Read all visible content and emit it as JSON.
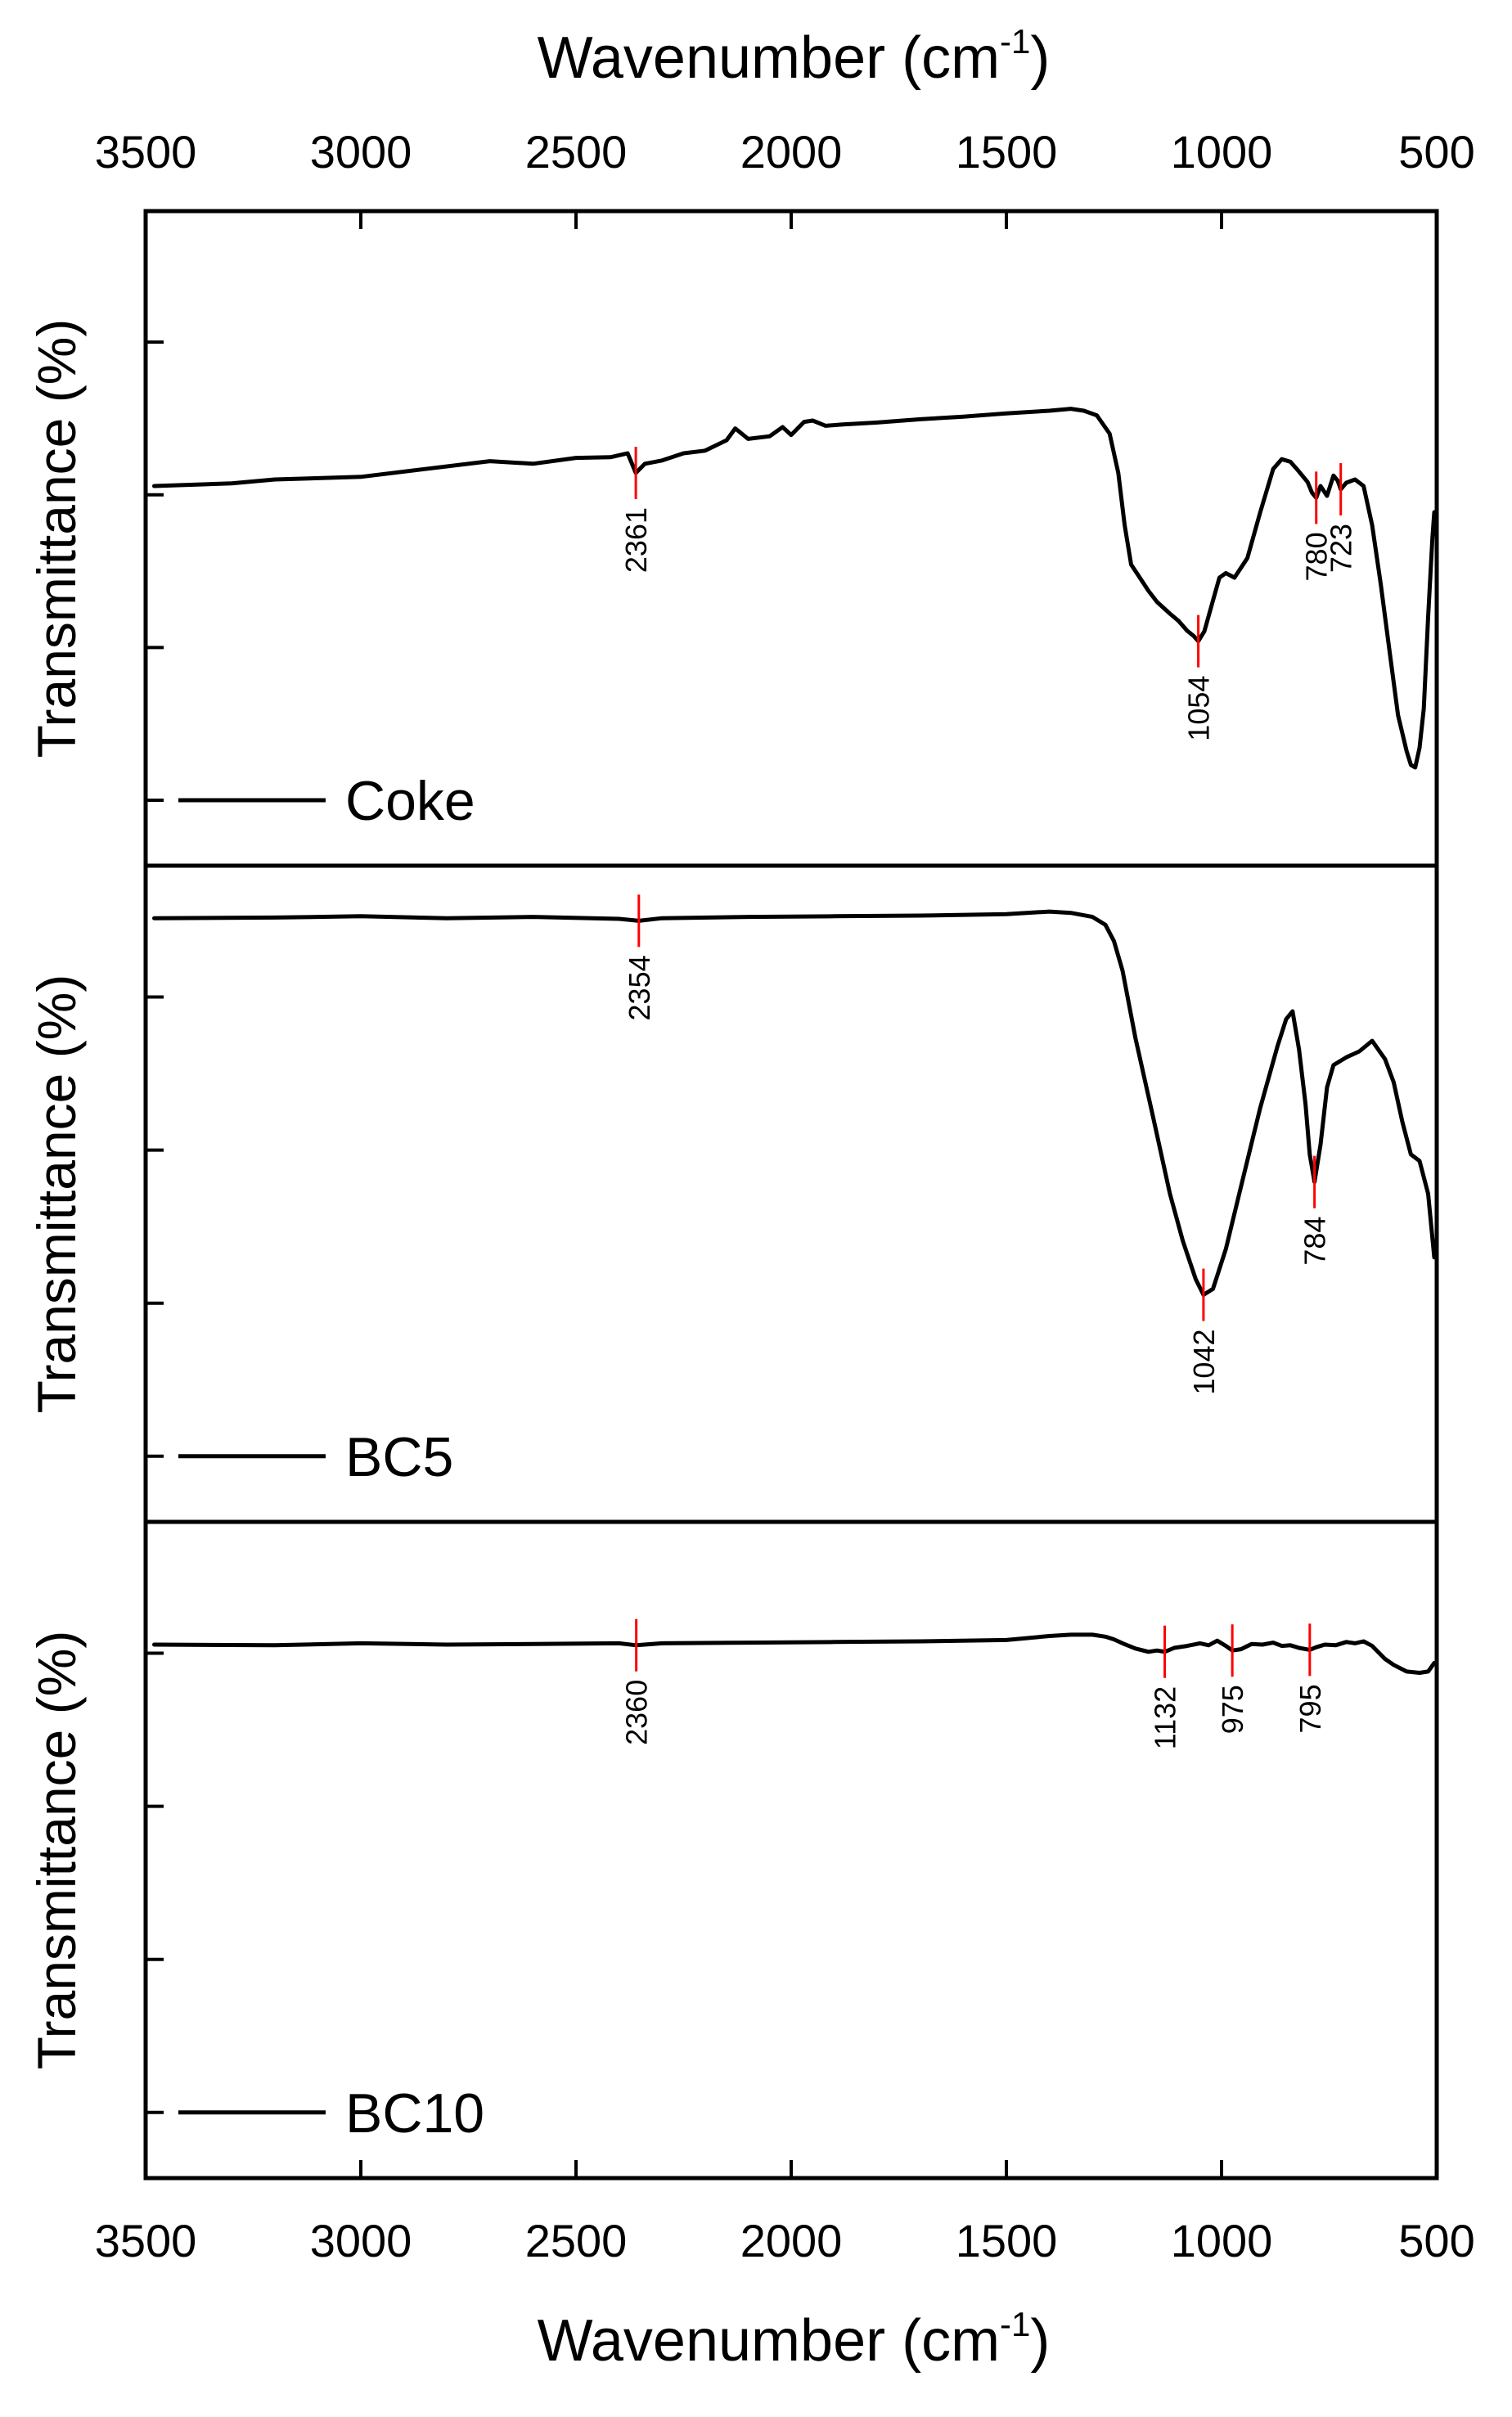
{
  "chart_data": [
    {
      "type": "line",
      "panel": "top",
      "title": "",
      "xlabel_top": "Wavenumber (cm",
      "xlabel_sup": "-1",
      "xlabel_close": ")",
      "ylabel": "Transmittance (%)",
      "xlim": [
        3500,
        500
      ],
      "ylim": [
        0,
        100
      ],
      "xticks": [
        3500,
        3000,
        2500,
        2000,
        1500,
        1000,
        500
      ],
      "ytick_count": 4,
      "legend_position": "bottom-left",
      "series": [
        {
          "name": "Coke",
          "x": [
            3480,
            3300,
            3200,
            3000,
            2850,
            2700,
            2600,
            2500,
            2420,
            2380,
            2361,
            2340,
            2300,
            2250,
            2200,
            2150,
            2130,
            2100,
            2050,
            2020,
            2000,
            1970,
            1950,
            1920,
            1880,
            1800,
            1700,
            1600,
            1500,
            1450,
            1400,
            1350,
            1320,
            1290,
            1260,
            1240,
            1225,
            1210,
            1190,
            1170,
            1150,
            1120,
            1100,
            1080,
            1065,
            1054,
            1040,
            1020,
            1005,
            990,
            970,
            940,
            910,
            880,
            860,
            840,
            820,
            800,
            790,
            780,
            770,
            755,
            740,
            730,
            723,
            710,
            690,
            670,
            650,
            630,
            610,
            590,
            570,
            560,
            550,
            540,
            530,
            520,
            510,
            500
          ],
          "values": [
            58,
            58.4,
            59,
            59.4,
            60.6,
            61.8,
            61.4,
            62.3,
            62.4,
            63,
            60,
            61.4,
            61.9,
            63,
            63.4,
            65,
            66.8,
            65.2,
            65.6,
            67,
            65.8,
            67.8,
            68,
            67.2,
            67.4,
            67.7,
            68.2,
            68.6,
            69.1,
            69.3,
            69.5,
            69.8,
            69.5,
            68.8,
            66,
            60,
            52,
            46,
            44,
            42,
            40.3,
            38.5,
            37.4,
            35.9,
            35.1,
            34.3,
            35.8,
            40.5,
            44,
            44.7,
            44,
            47,
            54,
            60.6,
            62.1,
            61.7,
            60.2,
            58.6,
            57,
            56.2,
            58,
            56.5,
            59.6,
            58.8,
            57.5,
            58.5,
            59,
            58,
            52,
            43,
            33,
            23,
            17.5,
            15.4,
            15,
            18,
            24,
            38,
            50,
            54
          ]
        }
      ],
      "annotations": [
        {
          "label": "2361",
          "x": 2361,
          "y": 60
        },
        {
          "label": "1054",
          "x": 1054,
          "y": 34.3
        },
        {
          "label": "780",
          "x": 780,
          "y": 56.2
        },
        {
          "label": "723",
          "x": 723,
          "y": 57.5
        }
      ]
    },
    {
      "type": "line",
      "panel": "middle",
      "title": "",
      "ylabel": "Transmittance (%)",
      "xlim": [
        3500,
        500
      ],
      "ylim": [
        0,
        100
      ],
      "ytick_count": 4,
      "legend_position": "bottom-left",
      "series": [
        {
          "name": "BC5",
          "x": [
            3480,
            3200,
            3000,
            2800,
            2600,
            2400,
            2354,
            2300,
            2100,
            1900,
            1700,
            1500,
            1400,
            1350,
            1300,
            1270,
            1250,
            1230,
            1200,
            1160,
            1120,
            1090,
            1060,
            1042,
            1020,
            990,
            950,
            910,
            870,
            850,
            835,
            820,
            805,
            795,
            784,
            770,
            755,
            740,
            710,
            680,
            650,
            620,
            600,
            580,
            560,
            540,
            520,
            500
          ],
          "values": [
            92,
            92.1,
            92.3,
            92,
            92.2,
            91.9,
            91.6,
            92,
            92.2,
            92.3,
            92.4,
            92.6,
            93,
            92.8,
            92.2,
            91,
            88.5,
            84,
            73.7,
            62,
            50,
            42.8,
            37,
            34.6,
            35.5,
            41.6,
            52.4,
            63.1,
            72.5,
            76.6,
            77.8,
            72,
            63.7,
            56,
            51.8,
            57.5,
            66.2,
            69.6,
            70.8,
            71.7,
            73.3,
            70.5,
            67,
            61,
            56,
            55,
            50,
            40.3
          ]
        }
      ],
      "annotations": [
        {
          "label": "2354",
          "x": 2354,
          "y": 91.6
        },
        {
          "label": "1042",
          "x": 1042,
          "y": 34.6
        },
        {
          "label": "784",
          "x": 784,
          "y": 51.8
        }
      ]
    },
    {
      "type": "line",
      "panel": "bottom",
      "title": "",
      "xlabel": "Wavenumber (cm",
      "xlabel_sup": "-1",
      "xlabel_close": ")",
      "ylabel": "Transmittance (%)",
      "xlim": [
        3500,
        500
      ],
      "ylim": [
        0,
        100
      ],
      "xticks": [
        3500,
        3000,
        2500,
        2000,
        1500,
        1000,
        500
      ],
      "ytick_count": 4,
      "legend_position": "bottom-left",
      "series": [
        {
          "name": "BC10",
          "x": [
            3480,
            3200,
            3000,
            2800,
            2600,
            2400,
            2360,
            2300,
            2100,
            1900,
            1700,
            1500,
            1400,
            1350,
            1300,
            1270,
            1250,
            1230,
            1200,
            1170,
            1150,
            1132,
            1110,
            1080,
            1050,
            1030,
            1010,
            990,
            975,
            955,
            930,
            905,
            880,
            860,
            840,
            820,
            795,
            780,
            760,
            735,
            710,
            690,
            670,
            650,
            620,
            600,
            570,
            540,
            520,
            500
          ],
          "values": [
            81.3,
            81.2,
            81.5,
            81.3,
            81.4,
            81.5,
            81.2,
            81.5,
            81.6,
            81.7,
            81.8,
            82,
            82.6,
            82.8,
            82.8,
            82.5,
            82.1,
            81.5,
            80.7,
            80.2,
            80.4,
            80.2,
            80.8,
            81.1,
            81.5,
            81.2,
            81.9,
            81.1,
            80.4,
            80.6,
            81.4,
            81.3,
            81.6,
            81.1,
            81.2,
            80.8,
            80.5,
            80.9,
            81.3,
            81.2,
            81.7,
            81.5,
            81.8,
            81.1,
            79.1,
            78.2,
            77.2,
            77.0,
            77.2,
            78.5
          ]
        }
      ],
      "annotations": [
        {
          "label": "2360",
          "x": 2360,
          "y": 81.2
        },
        {
          "label": "1132",
          "x": 1132,
          "y": 80.2
        },
        {
          "label": "975",
          "x": 975,
          "y": 80.4
        },
        {
          "label": "795",
          "x": 795,
          "y": 80.5
        }
      ]
    }
  ]
}
